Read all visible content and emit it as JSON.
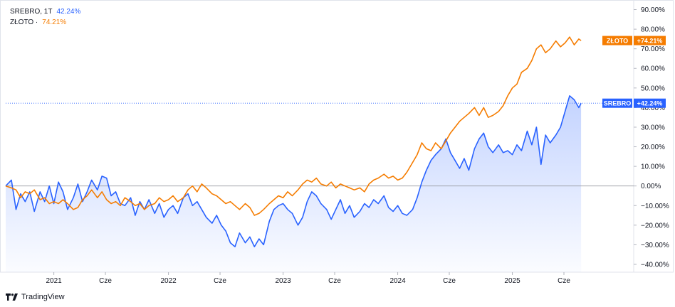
{
  "colors": {
    "silver": "#2962ff",
    "gold": "#f57c00",
    "grid": "#e0e3eb",
    "text": "#131722",
    "zero_line": "#9598a1"
  },
  "legend": {
    "silver_label": "SREBRO, 1T",
    "silver_value": "42.24%",
    "gold_label": "ZŁOTO ·",
    "gold_value": "74.21%"
  },
  "brand": {
    "name": "TradingView"
  },
  "chart_data": {
    "type": "line",
    "y_unit": "percent",
    "ylim": [
      -44,
      92
    ],
    "y_ticks": [
      -40,
      -30,
      -20,
      -10,
      0,
      10,
      20,
      30,
      40,
      50,
      60,
      70,
      80,
      90
    ],
    "y_tick_labels": [
      "−40.00%",
      "−30.00%",
      "−20.00%",
      "−10.00%",
      "0.00%",
      "10.00%",
      "20.00%",
      "30.00%",
      "40.00%",
      "50.00%",
      "60.00%",
      "70.00%",
      "80.00%",
      "90.00%"
    ],
    "xlim": [
      2020.58,
      2025.86
    ],
    "x_ticks": [
      2021.0,
      2021.45,
      2022.0,
      2022.45,
      2023.0,
      2023.45,
      2024.0,
      2024.45,
      2025.0,
      2025.45
    ],
    "x_tick_labels": [
      "2021",
      "Cze",
      "2022",
      "Cze",
      "2023",
      "Cze",
      "2024",
      "Cze",
      "2025",
      "Cze"
    ],
    "series": [
      {
        "name": "SREBRO",
        "end_label": "SREBRO",
        "end_value_label": "+42.24%",
        "color": "#2962ff",
        "points": [
          [
            2020.58,
            0
          ],
          [
            2020.63,
            3
          ],
          [
            2020.67,
            -12
          ],
          [
            2020.71,
            -4
          ],
          [
            2020.75,
            -8
          ],
          [
            2020.79,
            -3
          ],
          [
            2020.83,
            -13
          ],
          [
            2020.88,
            -3
          ],
          [
            2020.92,
            -8
          ],
          [
            2020.96,
            0
          ],
          [
            2021.0,
            -9
          ],
          [
            2021.04,
            2
          ],
          [
            2021.08,
            -3
          ],
          [
            2021.12,
            -12
          ],
          [
            2021.17,
            -6
          ],
          [
            2021.21,
            1
          ],
          [
            2021.25,
            -8
          ],
          [
            2021.29,
            -3
          ],
          [
            2021.33,
            3
          ],
          [
            2021.38,
            -2
          ],
          [
            2021.42,
            5
          ],
          [
            2021.46,
            4
          ],
          [
            2021.5,
            -5
          ],
          [
            2021.54,
            -3
          ],
          [
            2021.58,
            -9
          ],
          [
            2021.62,
            -10
          ],
          [
            2021.67,
            -6
          ],
          [
            2021.71,
            -15
          ],
          [
            2021.75,
            -8
          ],
          [
            2021.79,
            -12
          ],
          [
            2021.83,
            -7
          ],
          [
            2021.88,
            -14
          ],
          [
            2021.92,
            -9
          ],
          [
            2021.96,
            -16
          ],
          [
            2022.0,
            -12
          ],
          [
            2022.04,
            -10
          ],
          [
            2022.08,
            -14
          ],
          [
            2022.13,
            -6
          ],
          [
            2022.17,
            -4
          ],
          [
            2022.21,
            -10
          ],
          [
            2022.25,
            -8
          ],
          [
            2022.29,
            -12
          ],
          [
            2022.33,
            -16
          ],
          [
            2022.38,
            -19
          ],
          [
            2022.42,
            -15
          ],
          [
            2022.46,
            -20
          ],
          [
            2022.5,
            -23
          ],
          [
            2022.54,
            -29
          ],
          [
            2022.58,
            -31
          ],
          [
            2022.62,
            -24
          ],
          [
            2022.67,
            -29
          ],
          [
            2022.71,
            -26
          ],
          [
            2022.75,
            -31
          ],
          [
            2022.79,
            -27
          ],
          [
            2022.83,
            -30
          ],
          [
            2022.88,
            -18
          ],
          [
            2022.92,
            -12
          ],
          [
            2022.96,
            -10
          ],
          [
            2023.0,
            -9
          ],
          [
            2023.04,
            -12
          ],
          [
            2023.08,
            -14
          ],
          [
            2023.13,
            -20
          ],
          [
            2023.17,
            -16
          ],
          [
            2023.21,
            -8
          ],
          [
            2023.25,
            -3
          ],
          [
            2023.29,
            -5
          ],
          [
            2023.33,
            -9
          ],
          [
            2023.38,
            -12
          ],
          [
            2023.42,
            -17
          ],
          [
            2023.46,
            -12
          ],
          [
            2023.5,
            -7
          ],
          [
            2023.54,
            -14
          ],
          [
            2023.58,
            -10
          ],
          [
            2023.62,
            -16
          ],
          [
            2023.67,
            -13
          ],
          [
            2023.71,
            -9
          ],
          [
            2023.75,
            -11
          ],
          [
            2023.79,
            -7
          ],
          [
            2023.83,
            -9
          ],
          [
            2023.88,
            -5
          ],
          [
            2023.92,
            -11
          ],
          [
            2023.96,
            -13
          ],
          [
            2024.0,
            -10
          ],
          [
            2024.04,
            -14
          ],
          [
            2024.08,
            -15
          ],
          [
            2024.13,
            -12
          ],
          [
            2024.17,
            -6
          ],
          [
            2024.21,
            2
          ],
          [
            2024.25,
            8
          ],
          [
            2024.29,
            13
          ],
          [
            2024.33,
            16
          ],
          [
            2024.38,
            19
          ],
          [
            2024.42,
            24
          ],
          [
            2024.46,
            17
          ],
          [
            2024.5,
            13
          ],
          [
            2024.54,
            9
          ],
          [
            2024.58,
            14
          ],
          [
            2024.62,
            8
          ],
          [
            2024.67,
            19
          ],
          [
            2024.71,
            24
          ],
          [
            2024.75,
            27
          ],
          [
            2024.79,
            20
          ],
          [
            2024.83,
            17
          ],
          [
            2024.88,
            21
          ],
          [
            2024.92,
            17
          ],
          [
            2024.96,
            18
          ],
          [
            2025.0,
            16
          ],
          [
            2025.04,
            21
          ],
          [
            2025.08,
            18
          ],
          [
            2025.13,
            28
          ],
          [
            2025.17,
            21
          ],
          [
            2025.21,
            30
          ],
          [
            2025.25,
            11
          ],
          [
            2025.29,
            26
          ],
          [
            2025.33,
            22
          ],
          [
            2025.38,
            26
          ],
          [
            2025.42,
            30
          ],
          [
            2025.46,
            38
          ],
          [
            2025.5,
            46
          ],
          [
            2025.54,
            44
          ],
          [
            2025.58,
            40
          ],
          [
            2025.6,
            42.24
          ]
        ]
      },
      {
        "name": "ZŁOTO",
        "end_label": "ZŁOTO",
        "end_value_label": "+74.21%",
        "color": "#f57c00",
        "points": [
          [
            2020.58,
            0
          ],
          [
            2020.63,
            -1
          ],
          [
            2020.67,
            -2
          ],
          [
            2020.71,
            -6
          ],
          [
            2020.75,
            -3
          ],
          [
            2020.79,
            -4
          ],
          [
            2020.83,
            -2
          ],
          [
            2020.88,
            -7
          ],
          [
            2020.92,
            -6
          ],
          [
            2020.96,
            -9
          ],
          [
            2021.0,
            -8
          ],
          [
            2021.04,
            -9
          ],
          [
            2021.08,
            -7
          ],
          [
            2021.12,
            -9
          ],
          [
            2021.17,
            -12
          ],
          [
            2021.21,
            -11
          ],
          [
            2021.25,
            -7
          ],
          [
            2021.29,
            -5
          ],
          [
            2021.33,
            -2
          ],
          [
            2021.38,
            -6
          ],
          [
            2021.42,
            -3
          ],
          [
            2021.46,
            -7
          ],
          [
            2021.5,
            -9
          ],
          [
            2021.54,
            -8
          ],
          [
            2021.58,
            -10
          ],
          [
            2021.62,
            -6
          ],
          [
            2021.67,
            -8
          ],
          [
            2021.71,
            -10
          ],
          [
            2021.75,
            -9
          ],
          [
            2021.79,
            -12
          ],
          [
            2021.83,
            -10
          ],
          [
            2021.88,
            -9
          ],
          [
            2021.92,
            -6
          ],
          [
            2021.96,
            -8
          ],
          [
            2022.0,
            -7
          ],
          [
            2022.04,
            -5
          ],
          [
            2022.08,
            -8
          ],
          [
            2022.13,
            -6
          ],
          [
            2022.17,
            -2
          ],
          [
            2022.21,
            0
          ],
          [
            2022.25,
            -3
          ],
          [
            2022.29,
            1
          ],
          [
            2022.33,
            -1
          ],
          [
            2022.38,
            -4
          ],
          [
            2022.42,
            -5
          ],
          [
            2022.46,
            -7
          ],
          [
            2022.5,
            -9
          ],
          [
            2022.54,
            -8
          ],
          [
            2022.58,
            -10
          ],
          [
            2022.62,
            -12
          ],
          [
            2022.67,
            -9
          ],
          [
            2022.71,
            -11
          ],
          [
            2022.75,
            -15
          ],
          [
            2022.79,
            -14
          ],
          [
            2022.83,
            -12
          ],
          [
            2022.88,
            -9
          ],
          [
            2022.92,
            -7
          ],
          [
            2022.96,
            -5
          ],
          [
            2023.0,
            -6
          ],
          [
            2023.04,
            -3
          ],
          [
            2023.08,
            -5
          ],
          [
            2023.13,
            -2
          ],
          [
            2023.17,
            1
          ],
          [
            2023.21,
            3
          ],
          [
            2023.25,
            2
          ],
          [
            2023.29,
            4
          ],
          [
            2023.33,
            1
          ],
          [
            2023.38,
            0
          ],
          [
            2023.42,
            2
          ],
          [
            2023.46,
            -1
          ],
          [
            2023.5,
            1
          ],
          [
            2023.54,
            0
          ],
          [
            2023.58,
            -1
          ],
          [
            2023.62,
            -2
          ],
          [
            2023.67,
            -1
          ],
          [
            2023.71,
            -3
          ],
          [
            2023.75,
            1
          ],
          [
            2023.79,
            3
          ],
          [
            2023.83,
            4
          ],
          [
            2023.88,
            6
          ],
          [
            2023.92,
            4
          ],
          [
            2023.96,
            5
          ],
          [
            2024.0,
            3
          ],
          [
            2024.04,
            4
          ],
          [
            2024.08,
            7
          ],
          [
            2024.13,
            12
          ],
          [
            2024.17,
            16
          ],
          [
            2024.21,
            22
          ],
          [
            2024.25,
            19
          ],
          [
            2024.29,
            18
          ],
          [
            2024.33,
            22
          ],
          [
            2024.38,
            19
          ],
          [
            2024.42,
            23
          ],
          [
            2024.46,
            27
          ],
          [
            2024.5,
            30
          ],
          [
            2024.54,
            33
          ],
          [
            2024.58,
            35
          ],
          [
            2024.62,
            37
          ],
          [
            2024.67,
            40
          ],
          [
            2024.71,
            36
          ],
          [
            2024.75,
            40
          ],
          [
            2024.79,
            35
          ],
          [
            2024.83,
            36
          ],
          [
            2024.88,
            38
          ],
          [
            2024.92,
            41
          ],
          [
            2024.96,
            46
          ],
          [
            2025.0,
            50
          ],
          [
            2025.04,
            52
          ],
          [
            2025.08,
            58
          ],
          [
            2025.13,
            60
          ],
          [
            2025.17,
            64
          ],
          [
            2025.21,
            70
          ],
          [
            2025.25,
            72
          ],
          [
            2025.29,
            68
          ],
          [
            2025.33,
            70
          ],
          [
            2025.38,
            74
          ],
          [
            2025.42,
            71
          ],
          [
            2025.46,
            73
          ],
          [
            2025.5,
            76
          ],
          [
            2025.54,
            72
          ],
          [
            2025.58,
            75
          ],
          [
            2025.6,
            74.21
          ]
        ]
      }
    ]
  }
}
